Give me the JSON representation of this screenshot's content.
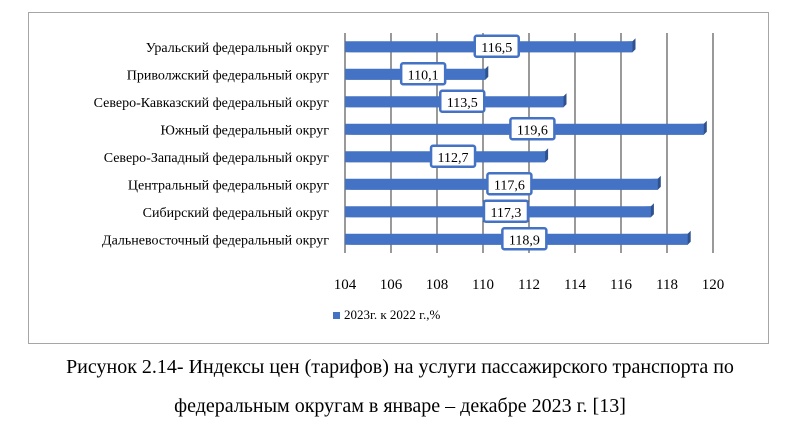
{
  "chart_data": {
    "type": "bar",
    "orientation": "horizontal",
    "categories": [
      "Уральский федеральный округ",
      "Приволжский федеральный округ",
      "Северо-Кавказский федеральный округ",
      "Южный федеральный округ",
      "Северо-Западный федеральный округ",
      "Центральный федеральный округ",
      "Сибирский федеральный округ",
      "Дальневосточный федеральный округ"
    ],
    "series": [
      {
        "name": "2023г. к 2022 г.,%",
        "values": [
          116.5,
          110.1,
          113.5,
          119.6,
          112.7,
          117.6,
          117.3,
          118.9
        ],
        "value_labels": [
          "116,5",
          "110,1",
          "113,5",
          "119,6",
          "112,7",
          "117,6",
          "117,3",
          "118,9"
        ]
      }
    ],
    "xlim": [
      104,
      120
    ],
    "xticks": [
      "104",
      "106",
      "108",
      "110",
      "112",
      "114",
      "116",
      "118",
      "120"
    ],
    "grid": "vertical",
    "legend": "bottom-center",
    "title": "",
    "xlabel": "",
    "ylabel": ""
  },
  "colors": {
    "bar": "#4472c4",
    "bar_dark": "#2f528f",
    "label_border": "#4472c4",
    "grid": "#000000"
  },
  "caption": {
    "line1": "Рисунок 2.14- Индексы цен (тарифов) на услуги пассажирского транспорта по",
    "line2": "федеральным округам в январе – декабре 2023 г. [13]"
  }
}
